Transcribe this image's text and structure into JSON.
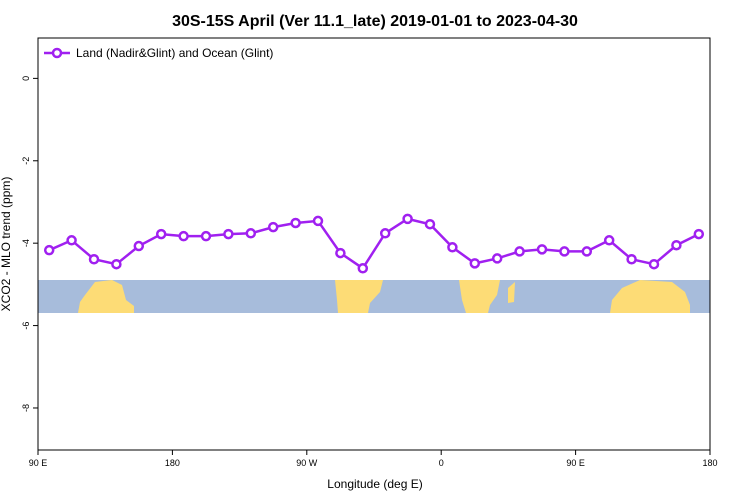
{
  "chart_data": {
    "type": "line",
    "title": "30S-15S April (Ver 11.1_late)   2019-01-01 to 2023-04-30",
    "x_label": "Longitude (deg E)",
    "y_label": "XCO2 - MLO trend (ppm)",
    "xlim": [
      90,
      540
    ],
    "ylim": [
      -9.02,
      0.98
    ],
    "xticks": [
      {
        "value": 90,
        "label": "90 E"
      },
      {
        "value": 180,
        "label": "180"
      },
      {
        "value": 270,
        "label": "90 W"
      },
      {
        "value": 360,
        "label": "0"
      },
      {
        "value": 450,
        "label": "90 E"
      },
      {
        "value": 540,
        "label": "180"
      }
    ],
    "yticks": [
      0,
      -2,
      -4,
      -6,
      -8
    ],
    "legend_position": "top-left",
    "series": [
      {
        "name": "Land (Nadir&Glint) and Ocean (Glint)",
        "color": "#a020f0",
        "x": [
          97.5,
          112.5,
          127.5,
          142.5,
          157.5,
          172.5,
          187.5,
          202.5,
          217.5,
          232.5,
          247.5,
          262.5,
          277.5,
          292.5,
          307.5,
          322.5,
          337.5,
          352.5,
          367.5,
          382.5,
          397.5,
          412.5,
          427.5,
          442.5,
          457.5,
          472.5,
          487.5,
          502.5,
          517.5,
          532.5
        ],
        "values": [
          -4.17,
          -3.93,
          -4.39,
          -4.51,
          -4.07,
          -3.78,
          -3.83,
          -3.83,
          -3.78,
          -3.76,
          -3.61,
          -3.51,
          -3.46,
          -4.24,
          -4.61,
          -3.76,
          -3.41,
          -3.54,
          -4.1,
          -4.49,
          -4.37,
          -4.2,
          -4.15,
          -4.2,
          -4.2,
          -3.93,
          -4.39,
          -4.51,
          -4.05,
          -3.78
        ]
      }
    ]
  }
}
